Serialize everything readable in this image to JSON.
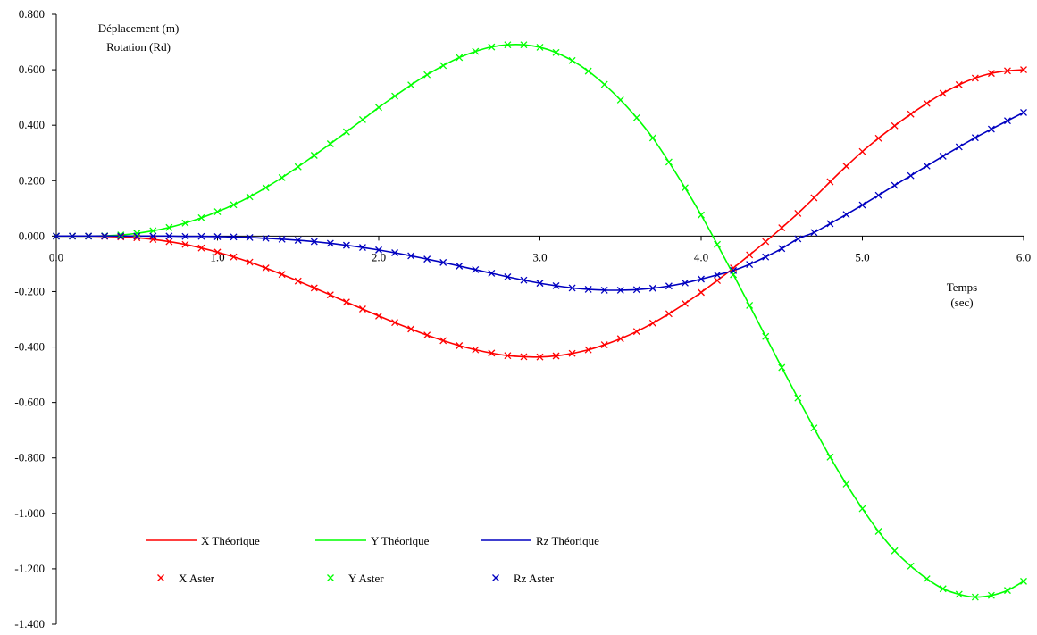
{
  "chart_data": {
    "type": "line",
    "title": "",
    "ylabel_lines": [
      "Déplacement (m)",
      "Rotation (Rd)"
    ],
    "xlabel_lines": [
      "Temps",
      "(sec)"
    ],
    "xlim": [
      0,
      6
    ],
    "ylim": [
      -1.4,
      0.8
    ],
    "x_ticks": [
      0,
      1,
      2,
      3,
      4,
      5,
      6
    ],
    "x_tick_labels": [
      "0.0",
      "1.0",
      "2.0",
      "3.0",
      "4.0",
      "5.0",
      "6.0"
    ],
    "y_ticks": [
      0.8,
      0.6,
      0.4,
      0.2,
      0.0,
      -0.2,
      -0.4,
      -0.6,
      -0.8,
      -1.0,
      -1.2,
      -1.4
    ],
    "y_tick_labels": [
      "0.800",
      "0.600",
      "0.400",
      "0.200",
      "0.000",
      "-0.200",
      "-0.400",
      "-0.600",
      "-0.800",
      "-1.000",
      "-1.200",
      "-1.400"
    ],
    "grid": false,
    "legend_position": "bottom-left",
    "x": [
      0.0,
      0.1,
      0.2,
      0.3,
      0.4,
      0.5,
      0.6,
      0.7,
      0.8,
      0.9,
      1.0,
      1.1,
      1.2,
      1.3,
      1.4,
      1.5,
      1.6,
      1.7,
      1.8,
      1.9,
      2.0,
      2.1,
      2.2,
      2.3,
      2.4,
      2.5,
      2.6,
      2.7,
      2.8,
      2.9,
      3.0,
      3.1,
      3.2,
      3.3,
      3.4,
      3.5,
      3.6,
      3.7,
      3.8,
      3.9,
      4.0,
      4.1,
      4.2,
      4.3,
      4.4,
      4.5,
      4.6,
      4.7,
      4.8,
      4.9,
      5.0,
      5.1,
      5.2,
      5.3,
      5.4,
      5.5,
      5.6,
      5.7,
      5.8,
      5.9,
      6.0
    ],
    "series": [
      {
        "name": "X Théorique",
        "kind": "line",
        "color": "#ff0000",
        "values": [
          0.0,
          0.0,
          0.0,
          -0.001,
          -0.003,
          -0.006,
          -0.012,
          -0.02,
          -0.03,
          -0.043,
          -0.058,
          -0.075,
          -0.094,
          -0.115,
          -0.138,
          -0.162,
          -0.187,
          -0.212,
          -0.238,
          -0.263,
          -0.288,
          -0.312,
          -0.335,
          -0.357,
          -0.377,
          -0.395,
          -0.41,
          -0.422,
          -0.431,
          -0.435,
          -0.436,
          -0.432,
          -0.423,
          -0.41,
          -0.392,
          -0.37,
          -0.344,
          -0.314,
          -0.28,
          -0.243,
          -0.203,
          -0.16,
          -0.115,
          -0.068,
          -0.02,
          0.03,
          0.082,
          0.138,
          0.196,
          0.252,
          0.305,
          0.353,
          0.398,
          0.44,
          0.479,
          0.515,
          0.546,
          0.57,
          0.587,
          0.596,
          0.6
        ]
      },
      {
        "name": "Y Théorique",
        "kind": "line",
        "color": "#00ff00",
        "values": [
          0.0,
          0.0,
          0.0,
          0.001,
          0.004,
          0.01,
          0.019,
          0.031,
          0.047,
          0.066,
          0.088,
          0.113,
          0.142,
          0.175,
          0.211,
          0.25,
          0.291,
          0.333,
          0.376,
          0.42,
          0.464,
          0.505,
          0.545,
          0.582,
          0.615,
          0.644,
          0.666,
          0.682,
          0.69,
          0.69,
          0.681,
          0.662,
          0.633,
          0.595,
          0.547,
          0.491,
          0.427,
          0.354,
          0.267,
          0.174,
          0.076,
          -0.03,
          -0.139,
          -0.25,
          -0.362,
          -0.474,
          -0.584,
          -0.692,
          -0.797,
          -0.894,
          -0.983,
          -1.065,
          -1.135,
          -1.19,
          -1.236,
          -1.272,
          -1.292,
          -1.302,
          -1.296,
          -1.278,
          -1.245
        ]
      },
      {
        "name": "Rz Théorique",
        "kind": "line",
        "color": "#0000c0",
        "values": [
          0.0,
          0.0,
          0.0,
          0.0,
          0.0,
          0.0,
          0.0,
          0.0,
          -0.001,
          -0.001,
          -0.002,
          -0.003,
          -0.005,
          -0.008,
          -0.011,
          -0.015,
          -0.02,
          -0.026,
          -0.033,
          -0.041,
          -0.05,
          -0.06,
          -0.071,
          -0.083,
          -0.095,
          -0.108,
          -0.121,
          -0.134,
          -0.147,
          -0.159,
          -0.17,
          -0.179,
          -0.187,
          -0.192,
          -0.195,
          -0.195,
          -0.193,
          -0.188,
          -0.18,
          -0.169,
          -0.155,
          -0.14,
          -0.124,
          -0.102,
          -0.075,
          -0.045,
          -0.01,
          0.013,
          0.045,
          0.078,
          0.112,
          0.147,
          0.183,
          0.218,
          0.253,
          0.288,
          0.322,
          0.355,
          0.386,
          0.416,
          0.446
        ]
      },
      {
        "name": "X Aster",
        "kind": "marker",
        "color": "#ff0000",
        "values": [
          0.0,
          0.0,
          0.0,
          -0.001,
          -0.003,
          -0.006,
          -0.012,
          -0.02,
          -0.03,
          -0.043,
          -0.058,
          -0.075,
          -0.094,
          -0.115,
          -0.138,
          -0.162,
          -0.187,
          -0.212,
          -0.238,
          -0.263,
          -0.288,
          -0.312,
          -0.335,
          -0.357,
          -0.377,
          -0.395,
          -0.41,
          -0.422,
          -0.431,
          -0.435,
          -0.436,
          -0.432,
          -0.423,
          -0.41,
          -0.392,
          -0.37,
          -0.344,
          -0.314,
          -0.28,
          -0.243,
          -0.203,
          -0.16,
          -0.115,
          -0.068,
          -0.02,
          0.03,
          0.082,
          0.138,
          0.196,
          0.252,
          0.305,
          0.353,
          0.398,
          0.44,
          0.479,
          0.515,
          0.546,
          0.57,
          0.587,
          0.596,
          0.6
        ]
      },
      {
        "name": "Y Aster",
        "kind": "marker",
        "color": "#00ff00",
        "values": [
          0.0,
          0.0,
          0.0,
          0.001,
          0.004,
          0.01,
          0.019,
          0.031,
          0.047,
          0.066,
          0.088,
          0.113,
          0.142,
          0.175,
          0.211,
          0.25,
          0.291,
          0.333,
          0.376,
          0.42,
          0.464,
          0.505,
          0.545,
          0.582,
          0.615,
          0.644,
          0.666,
          0.682,
          0.69,
          0.69,
          0.681,
          0.662,
          0.633,
          0.595,
          0.547,
          0.491,
          0.427,
          0.354,
          0.267,
          0.174,
          0.076,
          -0.03,
          -0.139,
          -0.25,
          -0.362,
          -0.474,
          -0.584,
          -0.692,
          -0.797,
          -0.894,
          -0.983,
          -1.065,
          -1.135,
          -1.19,
          -1.236,
          -1.272,
          -1.292,
          -1.302,
          -1.296,
          -1.278,
          -1.245
        ]
      },
      {
        "name": "Rz Aster",
        "kind": "marker",
        "color": "#0000c0",
        "values": [
          0.0,
          0.0,
          0.0,
          0.0,
          0.0,
          0.0,
          0.0,
          0.0,
          -0.001,
          -0.001,
          -0.002,
          -0.003,
          -0.005,
          -0.008,
          -0.011,
          -0.015,
          -0.02,
          -0.026,
          -0.033,
          -0.041,
          -0.05,
          -0.06,
          -0.071,
          -0.083,
          -0.095,
          -0.108,
          -0.121,
          -0.134,
          -0.147,
          -0.159,
          -0.17,
          -0.179,
          -0.187,
          -0.192,
          -0.195,
          -0.195,
          -0.193,
          -0.188,
          -0.18,
          -0.169,
          -0.155,
          -0.14,
          -0.124,
          -0.102,
          -0.075,
          -0.045,
          -0.01,
          0.013,
          0.045,
          0.078,
          0.112,
          0.147,
          0.183,
          0.218,
          0.253,
          0.288,
          0.322,
          0.355,
          0.386,
          0.416,
          0.446
        ]
      }
    ]
  }
}
